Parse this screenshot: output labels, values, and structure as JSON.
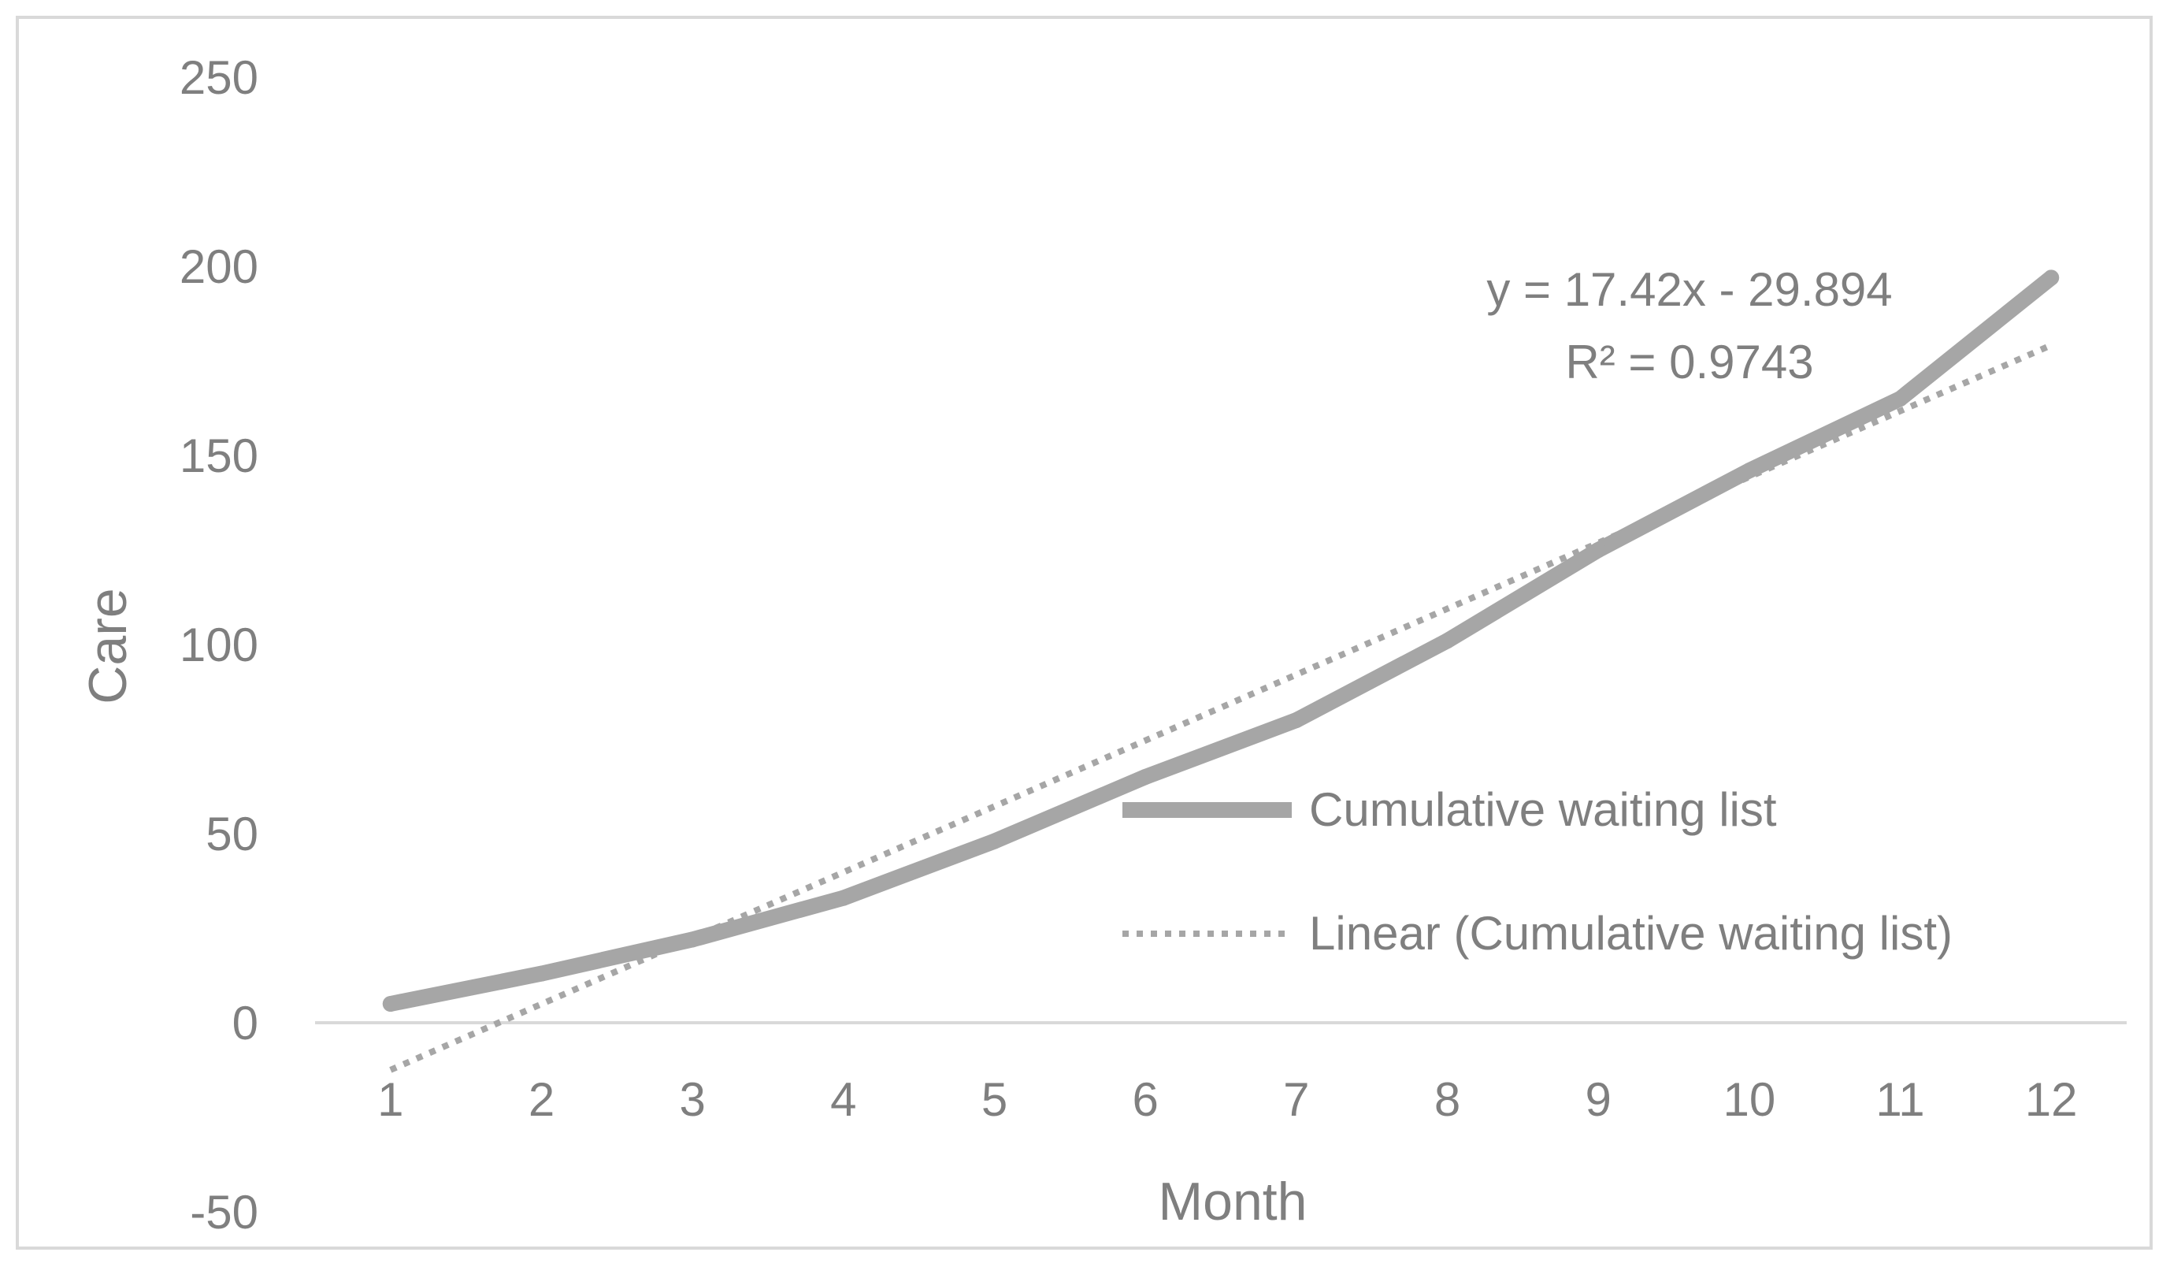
{
  "chart_data": {
    "type": "line",
    "title": "",
    "xlabel": "Month",
    "ylabel": "Care",
    "x": [
      1,
      2,
      3,
      4,
      5,
      6,
      7,
      8,
      9,
      10,
      11,
      12
    ],
    "xlim": [
      0.5,
      12.5
    ],
    "ylim": [
      -50,
      250
    ],
    "yticks": [
      -50,
      0,
      50,
      100,
      150,
      200,
      250
    ],
    "grid": false,
    "legend_position": "right",
    "series": [
      {
        "name": "Cumulative waiting list",
        "style": "solid",
        "color": "#a6a6a6",
        "values": [
          5,
          13,
          22,
          33,
          48,
          65,
          80,
          101,
          125,
          146,
          165,
          197
        ]
      },
      {
        "name": "Linear (Cumulative waiting list)",
        "style": "dotted",
        "color": "#a6a6a6",
        "trendline": {
          "slope": 17.42,
          "intercept": -29.894
        }
      }
    ],
    "annotation": {
      "equation": "y = 17.42x - 29.894",
      "r_squared": "R² = 0.9743"
    }
  }
}
